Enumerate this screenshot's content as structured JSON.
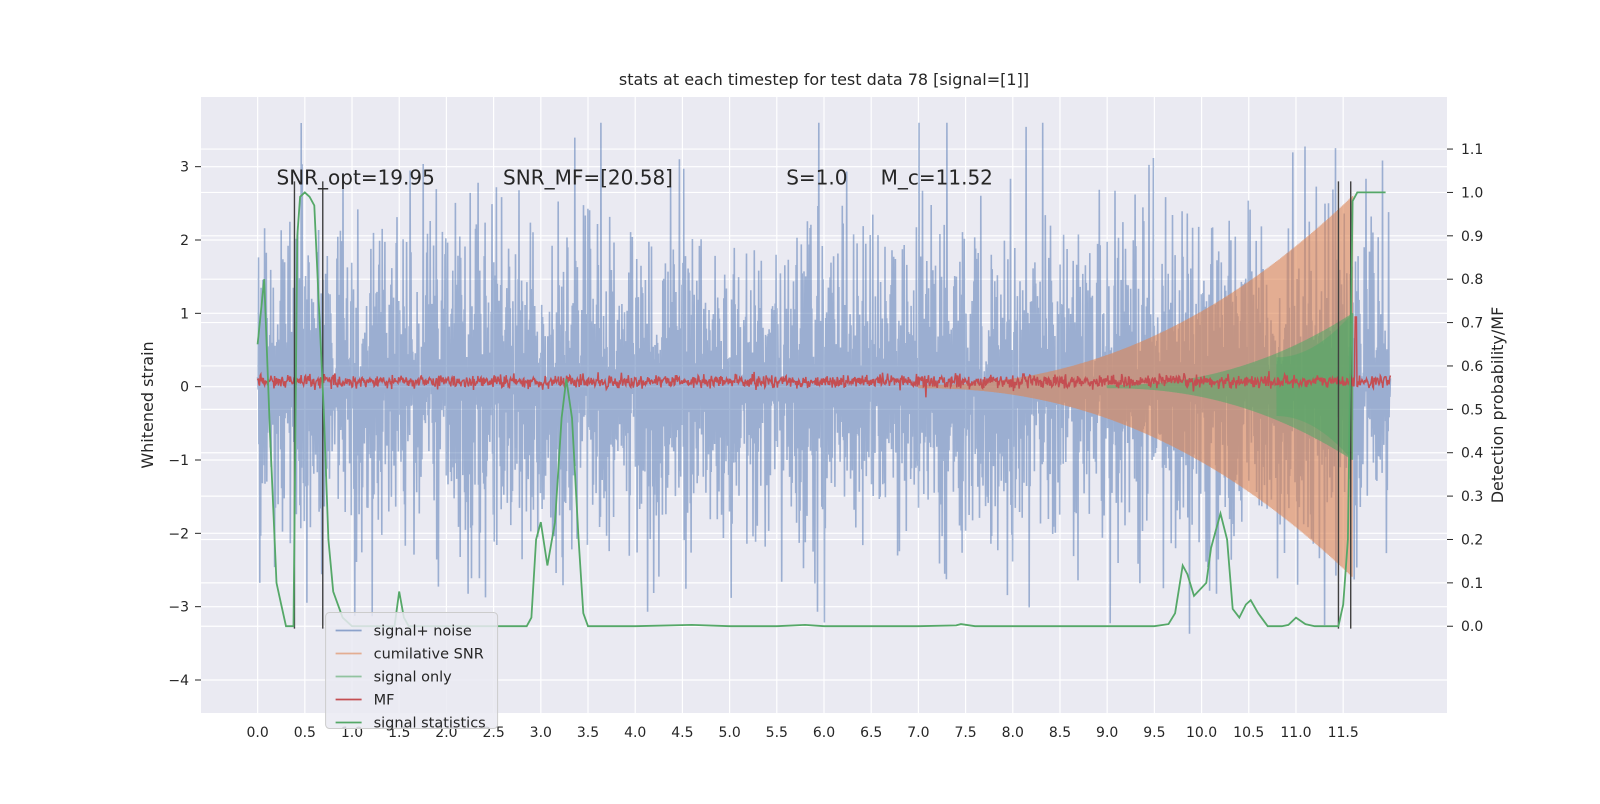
{
  "chart_data": {
    "type": "line",
    "title": "stats at each timestep for test data 78 [signal=[1]]",
    "xlabel": "",
    "ylabel": "Whitened strain",
    "y2label": "Detection probability/MF",
    "xlim": [
      -0.6,
      12.6
    ],
    "ylim": [
      -4.45,
      3.95
    ],
    "y2lim": [
      -0.2,
      1.22
    ],
    "grid": true,
    "legend_position": "lower-left",
    "x_ticks": [
      "0.0",
      "0.5",
      "1.0",
      "1.5",
      "2.0",
      "2.5",
      "3.0",
      "3.5",
      "4.0",
      "4.5",
      "5.0",
      "5.5",
      "6.0",
      "6.5",
      "7.0",
      "7.5",
      "8.0",
      "8.5",
      "9.0",
      "9.5",
      "10.0",
      "10.5",
      "11.0",
      "11.5"
    ],
    "y_ticks": [
      "3",
      "2",
      "1",
      "0",
      "−1",
      "−2",
      "−3",
      "−4"
    ],
    "y2_ticks": [
      "1.1",
      "1.0",
      "0.9",
      "0.8",
      "0.7",
      "0.6",
      "0.5",
      "0.4",
      "0.3",
      "0.2",
      "0.1",
      "0.0"
    ],
    "annotations": [
      {
        "text": "SNR_opt=19.95",
        "x": 0.2,
        "y": 2.85
      },
      {
        "text": "SNR_MF=[20.58]",
        "x": 2.6,
        "y": 2.85
      },
      {
        "text": "S=1.0",
        "x": 5.6,
        "y": 2.85
      },
      {
        "text": "M_c=11.52",
        "x": 6.6,
        "y": 2.85
      }
    ],
    "vertical_lines": [
      0.39,
      0.69,
      11.45,
      11.58
    ],
    "series": [
      {
        "name": "signal+ noise",
        "color": "#4c72b0",
        "kind": "noise band",
        "x_range": [
          0.0,
          12.0
        ],
        "amplitude_sigma": 1.0,
        "peak_max": 3.6,
        "peak_min": -4.1
      },
      {
        "name": "cumilative SNR",
        "color": "#dd8452",
        "kind": "chirp envelope",
        "x_range": [
          7.0,
          11.6
        ],
        "peak_max": 2.6,
        "peak_min": -2.6
      },
      {
        "name": "signal only",
        "color": "#55a868",
        "kind": "chirp envelope",
        "x_range": [
          9.0,
          11.6
        ],
        "peak_max": 1.0,
        "peak_min": -1.0
      },
      {
        "name": "MF",
        "color": "#c44e52",
        "kind": "flat trace",
        "x_range": [
          0.0,
          12.0
        ],
        "baseline": 0.07,
        "spike": {
          "x": 11.63,
          "y": 0.95
        }
      },
      {
        "name": "signal statistics",
        "color": "#55a868",
        "axis": "right",
        "points": [
          [
            0.0,
            0.65
          ],
          [
            0.07,
            0.8
          ],
          [
            0.13,
            0.45
          ],
          [
            0.2,
            0.1
          ],
          [
            0.25,
            0.05
          ],
          [
            0.3,
            0.0
          ],
          [
            0.38,
            0.0
          ],
          [
            0.42,
            0.9
          ],
          [
            0.45,
            0.99
          ],
          [
            0.5,
            1.0
          ],
          [
            0.55,
            0.99
          ],
          [
            0.6,
            0.97
          ],
          [
            0.7,
            0.5
          ],
          [
            0.75,
            0.2
          ],
          [
            0.8,
            0.08
          ],
          [
            0.9,
            0.02
          ],
          [
            1.0,
            0.0
          ],
          [
            1.2,
            0.0
          ],
          [
            1.45,
            0.0
          ],
          [
            1.5,
            0.08
          ],
          [
            1.55,
            0.02
          ],
          [
            1.6,
            0.0
          ],
          [
            2.0,
            0.0
          ],
          [
            2.5,
            0.0
          ],
          [
            2.85,
            0.0
          ],
          [
            2.9,
            0.02
          ],
          [
            2.95,
            0.2
          ],
          [
            3.0,
            0.24
          ],
          [
            3.07,
            0.14
          ],
          [
            3.15,
            0.24
          ],
          [
            3.22,
            0.48
          ],
          [
            3.27,
            0.57
          ],
          [
            3.33,
            0.48
          ],
          [
            3.4,
            0.2
          ],
          [
            3.45,
            0.03
          ],
          [
            3.5,
            0.0
          ],
          [
            4.0,
            0.0
          ],
          [
            4.6,
            0.003
          ],
          [
            5.0,
            0.0
          ],
          [
            5.5,
            0.0
          ],
          [
            5.8,
            0.003
          ],
          [
            6.0,
            0.0
          ],
          [
            6.5,
            0.0
          ],
          [
            7.0,
            0.0
          ],
          [
            7.4,
            0.002
          ],
          [
            7.45,
            0.005
          ],
          [
            7.6,
            0.0
          ],
          [
            8.0,
            0.0
          ],
          [
            9.0,
            0.0
          ],
          [
            9.5,
            0.0
          ],
          [
            9.65,
            0.005
          ],
          [
            9.72,
            0.03
          ],
          [
            9.8,
            0.14
          ],
          [
            9.85,
            0.12
          ],
          [
            9.92,
            0.07
          ],
          [
            10.05,
            0.1
          ],
          [
            10.1,
            0.18
          ],
          [
            10.15,
            0.22
          ],
          [
            10.2,
            0.26
          ],
          [
            10.27,
            0.2
          ],
          [
            10.33,
            0.04
          ],
          [
            10.4,
            0.02
          ],
          [
            10.47,
            0.05
          ],
          [
            10.52,
            0.06
          ],
          [
            10.6,
            0.03
          ],
          [
            10.7,
            0.0
          ],
          [
            10.85,
            0.0
          ],
          [
            10.92,
            0.003
          ],
          [
            11.0,
            0.02
          ],
          [
            11.1,
            0.005
          ],
          [
            11.2,
            0.0
          ],
          [
            11.35,
            0.0
          ],
          [
            11.45,
            0.0
          ],
          [
            11.5,
            0.05
          ],
          [
            11.55,
            0.2
          ],
          [
            11.6,
            0.98
          ],
          [
            11.65,
            1.0
          ],
          [
            11.8,
            1.0
          ],
          [
            11.95,
            1.0
          ]
        ]
      }
    ]
  }
}
